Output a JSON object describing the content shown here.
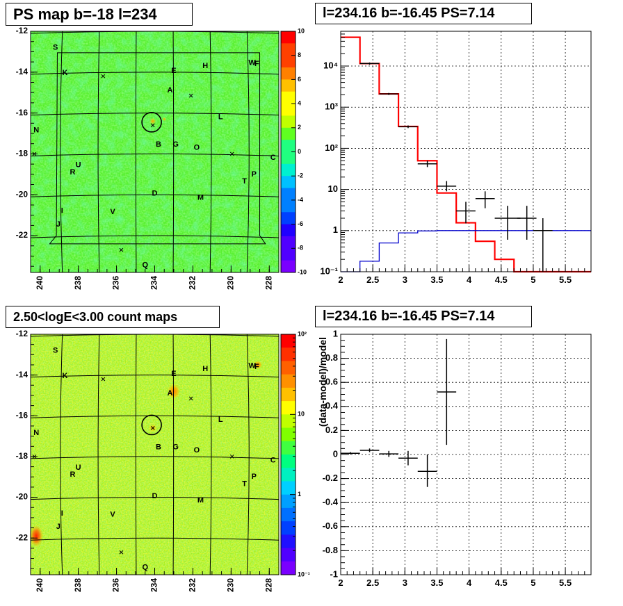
{
  "panels": {
    "tl_title": "PS map b=-18 l=234",
    "bl_title": "2.50<logE<3.00 count maps",
    "tr_title": "l=234.16 b=-16.45 PS=7.14",
    "br_title": "l=234.16 b=-16.45 PS=7.14"
  },
  "map_axes": {
    "x_ticks": [
      "240",
      "238",
      "236",
      "234",
      "232",
      "230",
      "228"
    ],
    "y_ticks": [
      "-12",
      "-14",
      "-16",
      "-18",
      "-20",
      "-22"
    ]
  },
  "colorbar_top": {
    "ticks": [
      "10",
      "8",
      "6",
      "4",
      "2",
      "0",
      "-2",
      "-4",
      "-6",
      "-8",
      "-10"
    ]
  },
  "colorbar_bottom": {
    "ticks": [
      "10²",
      "10",
      "1",
      "10⁻¹"
    ]
  },
  "source_labels": [
    "S",
    "K",
    "N",
    "U",
    "R",
    "I",
    "J",
    "V",
    "Q",
    "D",
    "B",
    "G",
    "O",
    "E",
    "A",
    "H",
    "W",
    "F",
    "L",
    "C",
    "P",
    "T",
    "M"
  ],
  "chart_data": [
    {
      "type": "heatmap",
      "title": "PS map b=-18 l=234",
      "xlim": [
        240.5,
        227.5
      ],
      "ylim": [
        -23.8,
        -12
      ],
      "z_range": [
        -10,
        10
      ],
      "colorbar_ticks": [
        10,
        8,
        6,
        4,
        2,
        0,
        -2,
        -4,
        -6,
        -8,
        -10
      ],
      "circle_center": [
        234.16,
        -16.45
      ]
    },
    {
      "type": "line",
      "title": "l=234.16 b=-16.45 PS=7.14",
      "y_scale": "log",
      "xlim": [
        2,
        5.9
      ],
      "ylim": [
        0.1,
        70000
      ],
      "x_ticks": [
        "2",
        "2.5",
        "3",
        "3.5",
        "4",
        "4.5",
        "5",
        "5.5"
      ],
      "y_ticks": [
        "10⁴",
        "10³",
        "10²",
        "10",
        "1",
        "10⁻¹"
      ],
      "grid": true,
      "series": [
        {
          "color": "#ff0000",
          "edges": [
            2,
            2.3,
            2.6,
            2.9,
            3.2,
            3.5,
            3.8,
            4.1,
            4.4,
            4.7,
            5.0,
            5.3,
            5.9
          ],
          "values": [
            50000,
            11500,
            2100,
            340,
            50,
            8.2,
            1.55,
            0.55,
            0.2,
            0.1,
            0.1,
            0.1
          ]
        },
        {
          "color": "#0000cc",
          "edges": [
            2,
            2.3,
            2.6,
            2.9,
            3.2,
            3.5,
            3.8,
            4.1,
            4.4,
            4.7,
            5.0,
            5.3,
            5.9
          ],
          "values": [
            0.05,
            0.18,
            0.5,
            0.88,
            0.98,
            1.0,
            1.0,
            1.0,
            1.0,
            1.0,
            1.0,
            1.0
          ]
        },
        {
          "color": "#000000",
          "points": [
            {
              "x": 2.45,
              "xerr": 0.15,
              "y": 11500,
              "ylo": 10800,
              "yhi": 12200
            },
            {
              "x": 2.75,
              "xerr": 0.15,
              "y": 2100,
              "ylo": 1980,
              "yhi": 2220
            },
            {
              "x": 3.05,
              "xerr": 0.15,
              "y": 335,
              "ylo": 310,
              "yhi": 360
            },
            {
              "x": 3.35,
              "xerr": 0.15,
              "y": 42,
              "ylo": 35,
              "yhi": 50
            },
            {
              "x": 3.65,
              "xerr": 0.15,
              "y": 12,
              "ylo": 9,
              "yhi": 16
            },
            {
              "x": 3.95,
              "xerr": 0.15,
              "y": 3,
              "ylo": 1.5,
              "yhi": 5
            },
            {
              "x": 4.25,
              "xerr": 0.15,
              "y": 6,
              "ylo": 3.5,
              "yhi": 9
            },
            {
              "x": 4.6,
              "xerr": 0.2,
              "y": 2,
              "ylo": 0.6,
              "yhi": 4
            },
            {
              "x": 4.9,
              "xerr": 0.15,
              "y": 2,
              "ylo": 0.6,
              "yhi": 4
            },
            {
              "x": 5.15,
              "xerr": 0.15,
              "y": 1,
              "ylo": 0.1,
              "yhi": 2
            }
          ]
        }
      ]
    },
    {
      "type": "heatmap",
      "title": "2.50<logE<3.00 count maps",
      "xlim": [
        240.5,
        227.5
      ],
      "ylim": [
        -23.8,
        -12
      ],
      "z_scale": "log",
      "z_range": [
        0.1,
        100
      ],
      "circle_center": [
        234.16,
        -16.45
      ]
    },
    {
      "type": "scatter",
      "title": "l=234.16 b=-16.45 PS=7.14",
      "ylabel": "(data-model)/model",
      "xlim": [
        2,
        5.9
      ],
      "ylim": [
        -1,
        1
      ],
      "x_ticks": [
        "2",
        "2.5",
        "3",
        "3.5",
        "4",
        "4.5",
        "5",
        "5.5"
      ],
      "y_ticks": [
        "1",
        "0.8",
        "0.6",
        "0.4",
        "0.2",
        "0",
        "-0.2",
        "-0.4",
        "-0.6",
        "-0.8",
        "-1"
      ],
      "grid": true,
      "points": [
        {
          "x": 2.15,
          "xerr": 0.15,
          "y": 0.01,
          "ylo": 0.0,
          "yhi": 0.02
        },
        {
          "x": 2.45,
          "xerr": 0.15,
          "y": 0.035,
          "ylo": 0.02,
          "yhi": 0.05
        },
        {
          "x": 2.75,
          "xerr": 0.15,
          "y": 0.005,
          "ylo": -0.02,
          "yhi": 0.03
        },
        {
          "x": 3.05,
          "xerr": 0.15,
          "y": -0.03,
          "ylo": -0.09,
          "yhi": 0.03
        },
        {
          "x": 3.35,
          "xerr": 0.15,
          "y": -0.14,
          "ylo": -0.27,
          "yhi": 0.0
        },
        {
          "x": 3.65,
          "xerr": 0.15,
          "y": 0.52,
          "ylo": 0.08,
          "yhi": 0.96
        }
      ]
    }
  ]
}
